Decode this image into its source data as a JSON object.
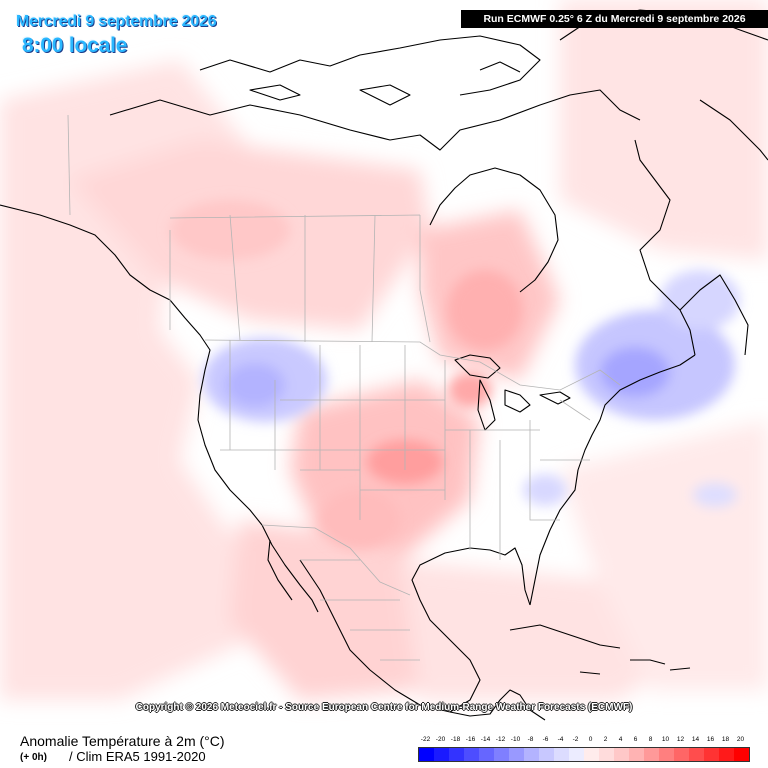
{
  "header": {
    "date_title": "Mercredi 9 septembre 2026",
    "local_time": "8:00 locale",
    "run_info": "Run ECMWF 0.25° 6 Z du Mercredi 9 septembre 2026"
  },
  "copyright": "Copyright © 2026 Meteociel.fr - Source European Centre for Medium-Range Weather Forecasts (ECMWF)",
  "footer": {
    "variable_title": "Anomalie Température à 2m (°C)",
    "lead_time": "(+ 0h)",
    "climatology": "/ Clim ERA5 1991-2020"
  },
  "legend": {
    "ticks": [
      "-22",
      "-20",
      "-18",
      "-16",
      "-14",
      "-12",
      "-10",
      "-8",
      "-6",
      "-4",
      "-2",
      "0",
      "2",
      "4",
      "6",
      "8",
      "10",
      "12",
      "14",
      "16",
      "18",
      "20"
    ],
    "colors": [
      "#0000ff",
      "#1a1aff",
      "#3333ff",
      "#4d4dff",
      "#6666ff",
      "#7f7fff",
      "#9999ff",
      "#b3b3ff",
      "#c8c8ff",
      "#dcdcff",
      "#ececff",
      "#ffecec",
      "#ffdcdc",
      "#ffc8c8",
      "#ffb3b3",
      "#ff9999",
      "#ff7f7f",
      "#ff6666",
      "#ff4d4d",
      "#ff3333",
      "#ff1a1a",
      "#ff0000"
    ]
  },
  "map": {
    "region": "North America",
    "field_colors": {
      "land": "#ffffff",
      "light_warm": "#ffe6e6",
      "warm": "#ffcfcf",
      "warmer": "#ffb3b3",
      "warmest": "#ff9d9d",
      "light_cool": "#e5e5ff",
      "cool": "#c8c8ff",
      "cooler": "#aeaeff",
      "coast": "#000000",
      "borders": "#b4b4b4"
    }
  }
}
